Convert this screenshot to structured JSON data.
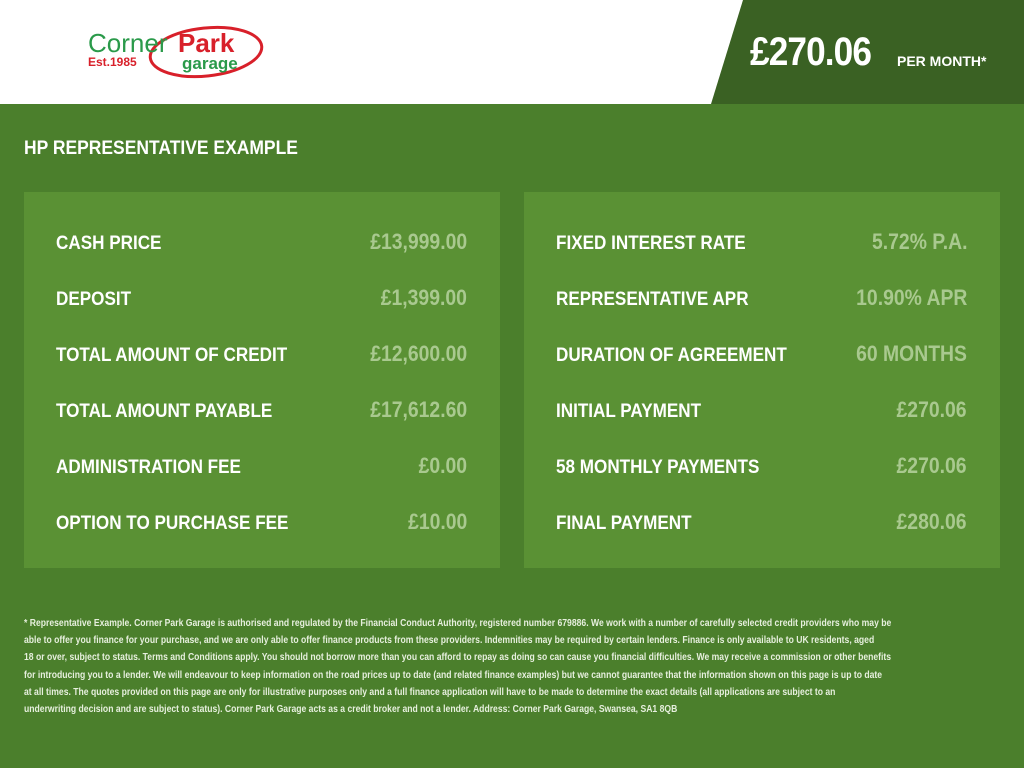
{
  "header": {
    "logo": {
      "brand_green": "Corner",
      "brand_red": "Park",
      "established": "Est.1985",
      "sub": "garage"
    },
    "monthly_price": "£270.06",
    "per_month": "PER MONTH*"
  },
  "colors": {
    "header_dark": "#3a6123",
    "background": "#4b7f2c",
    "panel": "#5a9134",
    "value": "#a9c98f",
    "logo_green": "#2a9a4a",
    "logo_red": "#d8202a"
  },
  "title": "HP REPRESENTATIVE EXAMPLE",
  "left_panel": [
    {
      "label": "CASH PRICE",
      "value": "£13,999.00"
    },
    {
      "label": "DEPOSIT",
      "value": "£1,399.00"
    },
    {
      "label": "TOTAL AMOUNT OF CREDIT",
      "value": "£12,600.00"
    },
    {
      "label": "TOTAL AMOUNT PAYABLE",
      "value": "£17,612.60"
    },
    {
      "label": "ADMINISTRATION FEE",
      "value": "£0.00"
    },
    {
      "label": "OPTION TO PURCHASE FEE",
      "value": "£10.00"
    }
  ],
  "right_panel": [
    {
      "label": "FIXED INTEREST RATE",
      "value": "5.72% P.A."
    },
    {
      "label": "REPRESENTATIVE APR",
      "value": "10.90% APR"
    },
    {
      "label": "DURATION OF AGREEMENT",
      "value": "60 MONTHS"
    },
    {
      "label": "INITIAL PAYMENT",
      "value": "£270.06"
    },
    {
      "label": "58 MONTHLY PAYMENTS",
      "value": "£270.06"
    },
    {
      "label": "FINAL PAYMENT",
      "value": "£280.06"
    }
  ],
  "footer_lines": [
    "* Representative Example. Corner Park Garage is authorised and regulated by the Financial Conduct Authority, registered number 679886. We work with a number of carefully selected credit providers who may be",
    "able to offer you finance for your purchase, and we are only able to offer finance products from these providers. Indemnities may be required by certain lenders. Finance is only available to UK residents, aged",
    "18 or over, subject to status. Terms and Conditions apply. You should not borrow more than you can afford to repay as doing so can cause you financial difficulties. We may receive a commission or other benefits",
    "for introducing you to a lender. We will endeavour to keep information on the road prices up to date (and related finance examples) but we cannot guarantee that the information shown on this page is up to date",
    "at all times. The quotes provided on this page are only for illustrative purposes only and a full finance application will have to be made to determine the exact details (all applications are subject to an",
    "underwriting decision and are subject to status). Corner Park Garage acts as a credit broker and not a lender. Address: Corner Park Garage, Swansea, SA1 8QB"
  ]
}
